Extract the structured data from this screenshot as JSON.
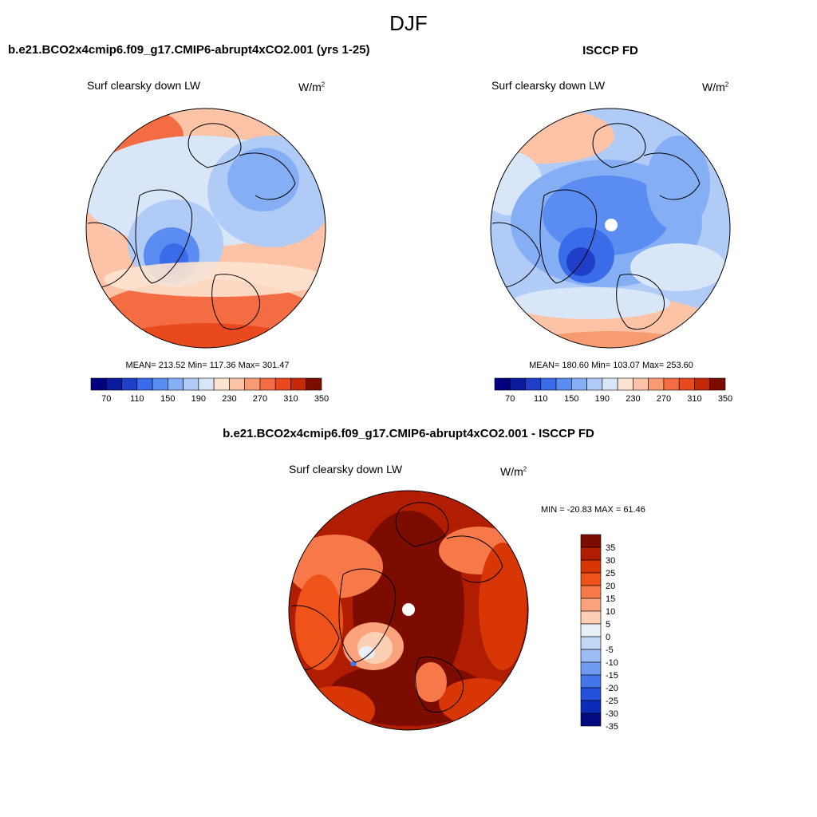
{
  "figure": {
    "title": "DJF"
  },
  "panels": {
    "model": {
      "title": "b.e21.BCO2x4cmip6.f09_g17.CMIP6-abrupt4xCO2.001 (yrs 1-25)",
      "variable": "Surf clearsky down LW",
      "units_base": "W/m",
      "units_exp": "2",
      "stats": "MEAN= 213.52  Min= 117.36  Max= 301.47"
    },
    "obs": {
      "title": "ISCCP FD",
      "variable": "Surf clearsky down LW",
      "units_base": "W/m",
      "units_exp": "2",
      "stats": "MEAN= 180.60  Min= 103.07  Max= 253.60"
    },
    "diff": {
      "title": "b.e21.BCO2x4cmip6.f09_g17.CMIP6-abrupt4xCO2.001 - ISCCP FD",
      "variable": "Surf clearsky down LW",
      "units_base": "W/m",
      "units_exp": "2",
      "stats": "MIN = -20.83 MAX =  61.46"
    }
  },
  "chart_data": [
    {
      "type": "heatmap",
      "projection": "north polar stereographic",
      "title": "b.e21.BCO2x4cmip6.f09_g17.CMIP6-abrupt4xCO2.001 (yrs 1-25)",
      "field": "Surf clearsky down LW",
      "units": "W/m2",
      "mean": 213.52,
      "min": 117.36,
      "max": 301.47,
      "colorbar": {
        "orientation": "horizontal",
        "levels": [
          70,
          90,
          110,
          130,
          150,
          170,
          190,
          210,
          230,
          250,
          270,
          290,
          310,
          330,
          350
        ],
        "tick_labels": [
          "70",
          "110",
          "150",
          "190",
          "230",
          "270",
          "310",
          "350"
        ]
      }
    },
    {
      "type": "heatmap",
      "projection": "north polar stereographic",
      "title": "ISCCP FD",
      "field": "Surf clearsky down LW",
      "units": "W/m2",
      "mean": 180.6,
      "min": 103.07,
      "max": 253.6,
      "colorbar": {
        "orientation": "horizontal",
        "levels": [
          70,
          90,
          110,
          130,
          150,
          170,
          190,
          210,
          230,
          250,
          270,
          290,
          310,
          330,
          350
        ],
        "tick_labels": [
          "70",
          "110",
          "150",
          "190",
          "230",
          "270",
          "310",
          "350"
        ]
      }
    },
    {
      "type": "heatmap",
      "projection": "north polar stereographic",
      "title": "b.e21.BCO2x4cmip6.f09_g17.CMIP6-abrupt4xCO2.001 - ISCCP FD",
      "field": "Surf clearsky down LW",
      "units": "W/m2",
      "min": -20.83,
      "max": 61.46,
      "colorbar": {
        "orientation": "vertical",
        "levels": [
          35,
          30,
          25,
          20,
          15,
          10,
          5,
          0,
          -5,
          -10,
          -15,
          -20,
          -25,
          -30,
          -35
        ],
        "tick_labels": [
          "35",
          "30",
          "25",
          "20",
          "15",
          "10",
          "5",
          "0",
          "-5",
          "-10",
          "-15",
          "-20",
          "-25",
          "-30",
          "-35"
        ]
      }
    }
  ],
  "palette": {
    "horizontal": [
      "#02007f",
      "#0a1a9e",
      "#1f3fc8",
      "#3a6be8",
      "#5a8cf2",
      "#86aef5",
      "#b1cbf7",
      "#d9e6f8",
      "#fde4d0",
      "#fcc3a6",
      "#f99b72",
      "#f46c43",
      "#e84a1e",
      "#c42a08",
      "#7d0c00"
    ],
    "vertical": [
      "#7d0c00",
      "#b01d00",
      "#d93606",
      "#f0531a",
      "#f7794a",
      "#fba37d",
      "#fdd0b6",
      "#eaf0f8",
      "#c2d6f6",
      "#9bbcf4",
      "#6f9bf0",
      "#4276ea",
      "#2550dc",
      "#0b2cb8",
      "#020a80"
    ]
  }
}
